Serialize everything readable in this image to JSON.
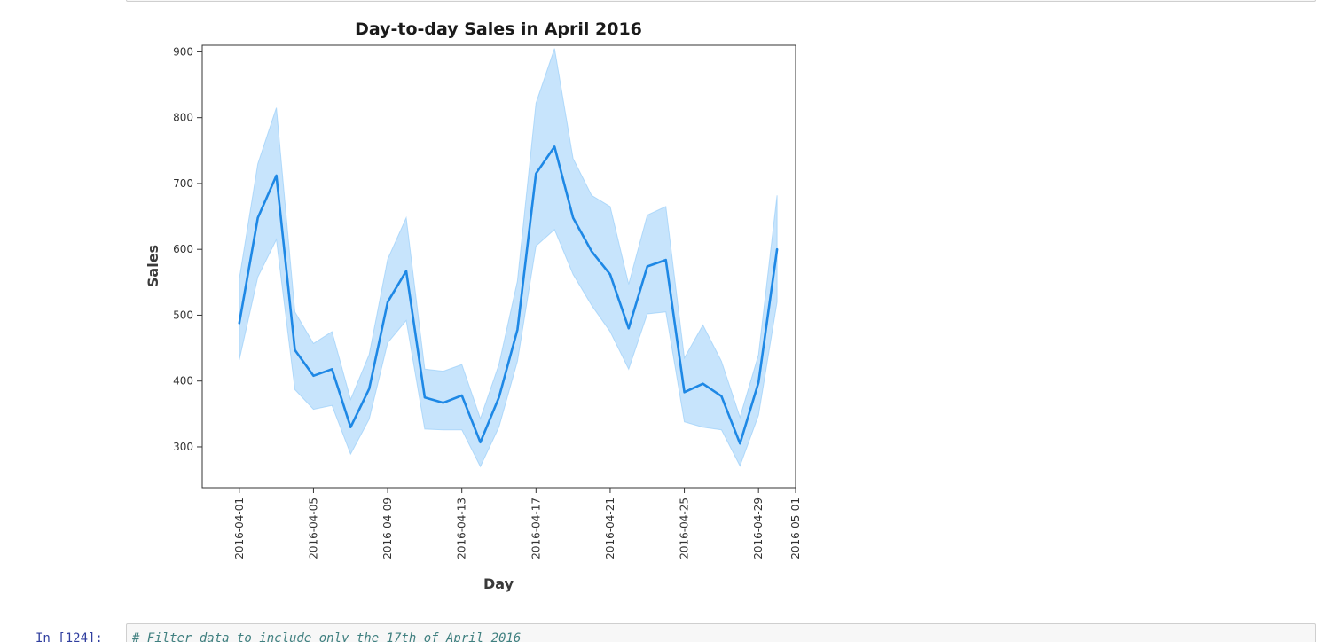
{
  "notebook": {
    "next_cell": {
      "prompt": "In [124]:",
      "code": "# Filter data to include only the 17th of April 2016"
    }
  },
  "colors": {
    "line": "#1e88e5",
    "band": "#90caf9",
    "axes": "#333333",
    "code_comment": "#408080",
    "prompt": "#303f9f"
  },
  "chart_data": {
    "type": "line",
    "title": "Day-to-day Sales in April 2016",
    "xlabel": "Day",
    "ylabel": "Sales",
    "xlim": [
      "2016-03-30",
      "2016-05-01"
    ],
    "ylim": [
      238,
      910
    ],
    "x_ticks": [
      "2016-04-01",
      "2016-04-05",
      "2016-04-09",
      "2016-04-13",
      "2016-04-17",
      "2016-04-21",
      "2016-04-25",
      "2016-04-29",
      "2016-05-01"
    ],
    "y_ticks": [
      300,
      400,
      500,
      600,
      700,
      800,
      900
    ],
    "grid": false,
    "legend": "none",
    "series": [
      {
        "x": [
          "2016-04-01",
          "2016-04-02",
          "2016-04-03",
          "2016-04-04",
          "2016-04-05",
          "2016-04-06",
          "2016-04-07",
          "2016-04-08",
          "2016-04-09",
          "2016-04-10",
          "2016-04-11",
          "2016-04-12",
          "2016-04-13",
          "2016-04-14",
          "2016-04-15",
          "2016-04-16",
          "2016-04-17",
          "2016-04-18",
          "2016-04-19",
          "2016-04-20",
          "2016-04-21",
          "2016-04-22",
          "2016-04-23",
          "2016-04-24",
          "2016-04-25",
          "2016-04-26",
          "2016-04-27",
          "2016-04-28",
          "2016-04-29",
          "2016-04-30"
        ],
        "y": [
          488,
          648,
          712,
          447,
          408,
          418,
          330,
          388,
          520,
          567,
          375,
          367,
          378,
          307,
          375,
          478,
          715,
          756,
          648,
          597,
          562,
          480,
          574,
          584,
          383,
          396,
          377,
          305,
          398,
          600
        ],
        "ci_lower": [
          432,
          558,
          615,
          387,
          357,
          363,
          289,
          342,
          458,
          492,
          327,
          326,
          326,
          270,
          330,
          430,
          605,
          630,
          562,
          515,
          475,
          418,
          502,
          505,
          338,
          330,
          326,
          271,
          348,
          520
        ],
        "ci_upper": [
          555,
          730,
          815,
          505,
          457,
          475,
          372,
          440,
          585,
          648,
          418,
          415,
          425,
          343,
          425,
          552,
          822,
          905,
          738,
          682,
          665,
          547,
          652,
          665,
          435,
          485,
          430,
          345,
          440,
          682
        ]
      }
    ]
  }
}
